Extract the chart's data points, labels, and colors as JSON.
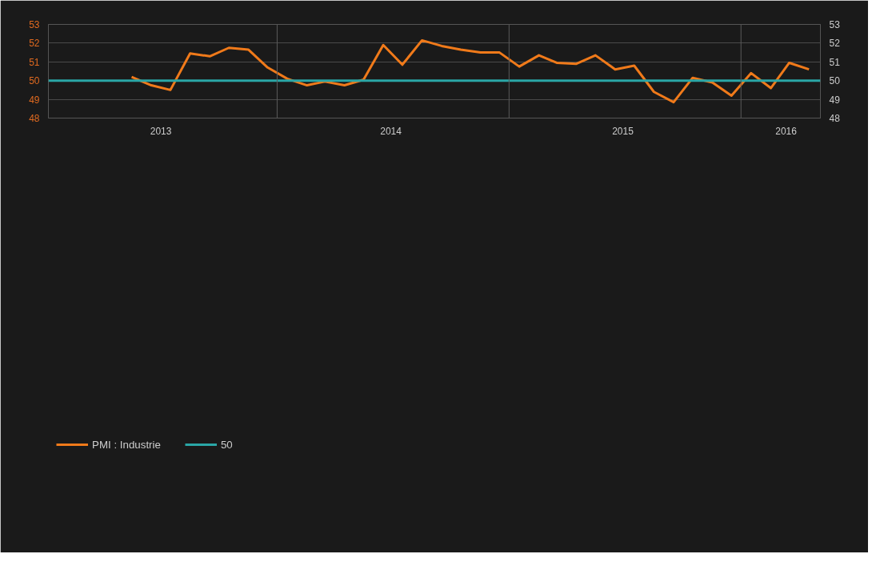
{
  "chart_data": {
    "type": "line",
    "x": [
      "2013-05-01",
      "2013-06-01",
      "2013-07-01",
      "2013-08-01",
      "2013-09-01",
      "2013-10-01",
      "2013-11-01",
      "2013-12-01",
      "2014-01-01",
      "2014-02-01",
      "2014-03-01",
      "2014-04-01",
      "2014-05-01",
      "2014-06-01",
      "2014-07-01",
      "2014-08-01",
      "2014-09-01",
      "2014-10-01",
      "2014-11-01",
      "2014-12-01",
      "2015-01-01",
      "2015-02-01",
      "2015-03-01",
      "2015-04-01",
      "2015-05-01",
      "2015-06-01",
      "2015-07-01",
      "2015-08-01",
      "2015-09-01",
      "2015-10-01",
      "2015-11-01",
      "2015-12-01",
      "2016-01-01",
      "2016-02-01",
      "2016-03-01",
      "2016-04-01"
    ],
    "series": [
      {
        "name": "PMI : Industrie",
        "color": "#f07a1a",
        "values": [
          50.2,
          49.75,
          49.5,
          51.45,
          51.3,
          51.75,
          51.65,
          50.7,
          50.1,
          49.75,
          49.95,
          49.75,
          50.05,
          51.9,
          50.85,
          52.15,
          51.85,
          51.65,
          51.5,
          51.5,
          50.75,
          51.35,
          50.95,
          50.9,
          51.35,
          50.6,
          50.8,
          49.4,
          48.85,
          50.15,
          49.9,
          49.2,
          50.4,
          49.6,
          50.95,
          50.6
        ]
      },
      {
        "name": "50",
        "color": "#2aa6a6",
        "x": [
          "2012-12-21",
          "2016-04-19"
        ],
        "values": [
          50,
          50
        ]
      }
    ],
    "xlim": [
      "2012-12-21",
      "2016-04-19"
    ],
    "xticks": [
      {
        "value": "2013-06-16",
        "label": "2013"
      },
      {
        "value": "2014-06-13",
        "label": "2014"
      },
      {
        "value": "2015-06-13",
        "label": "2015"
      },
      {
        "value": "2016-02-25",
        "label": "2016"
      }
    ],
    "ylim": [
      48,
      53
    ],
    "yticks": [
      48,
      49,
      50,
      51,
      52,
      53
    ],
    "y2lim": [
      48,
      53
    ],
    "y2ticks": [
      48,
      49,
      50,
      51,
      52,
      53
    ],
    "ref_lines": [
      {
        "axis": "x",
        "value": "2013-12-16",
        "color": "#5a5a5a"
      },
      {
        "axis": "x",
        "value": "2014-12-16",
        "color": "#5a5a5a"
      },
      {
        "axis": "x",
        "value": "2015-12-16",
        "color": "#5a5a5a"
      }
    ],
    "grid": "y",
    "legend": "bottom left",
    "line_style": "solid",
    "marker": "none"
  }
}
